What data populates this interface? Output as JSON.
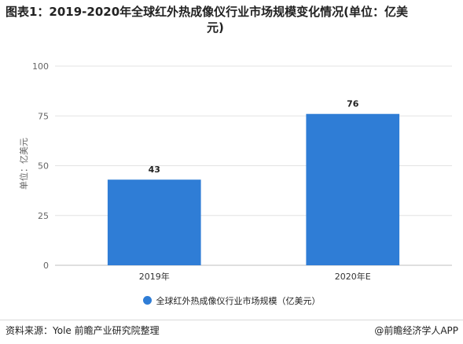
{
  "title": {
    "line1": "图表1：2019-2020年全球红外热成像仪行业市场规模变化情况(单位：亿美",
    "line2": "元)"
  },
  "chart_data": {
    "type": "bar",
    "title": "图表1：2019-2020年全球红外热成像仪行业市场规模变化情况(单位：亿美元)",
    "categories": [
      "2019年",
      "2020年E"
    ],
    "series": [
      {
        "name": "全球红外热成像仪行业市场规模（亿美元）",
        "values": [
          43,
          76
        ]
      }
    ],
    "xlabel": "",
    "ylabel": "单位：亿美元",
    "ylim": [
      0,
      100
    ],
    "yticks": [
      0,
      25,
      50,
      75,
      100
    ],
    "grid": true,
    "data_labels": true,
    "legend_position": "bottom",
    "bar_color": "#2f7dd6"
  },
  "legend": {
    "label": "全球红外热成像仪行业市场规模（亿美元）"
  },
  "footer": {
    "source": "资料来源：Yole 前瞻产业研究院整理",
    "brand": "@前瞻经济学人APP"
  }
}
